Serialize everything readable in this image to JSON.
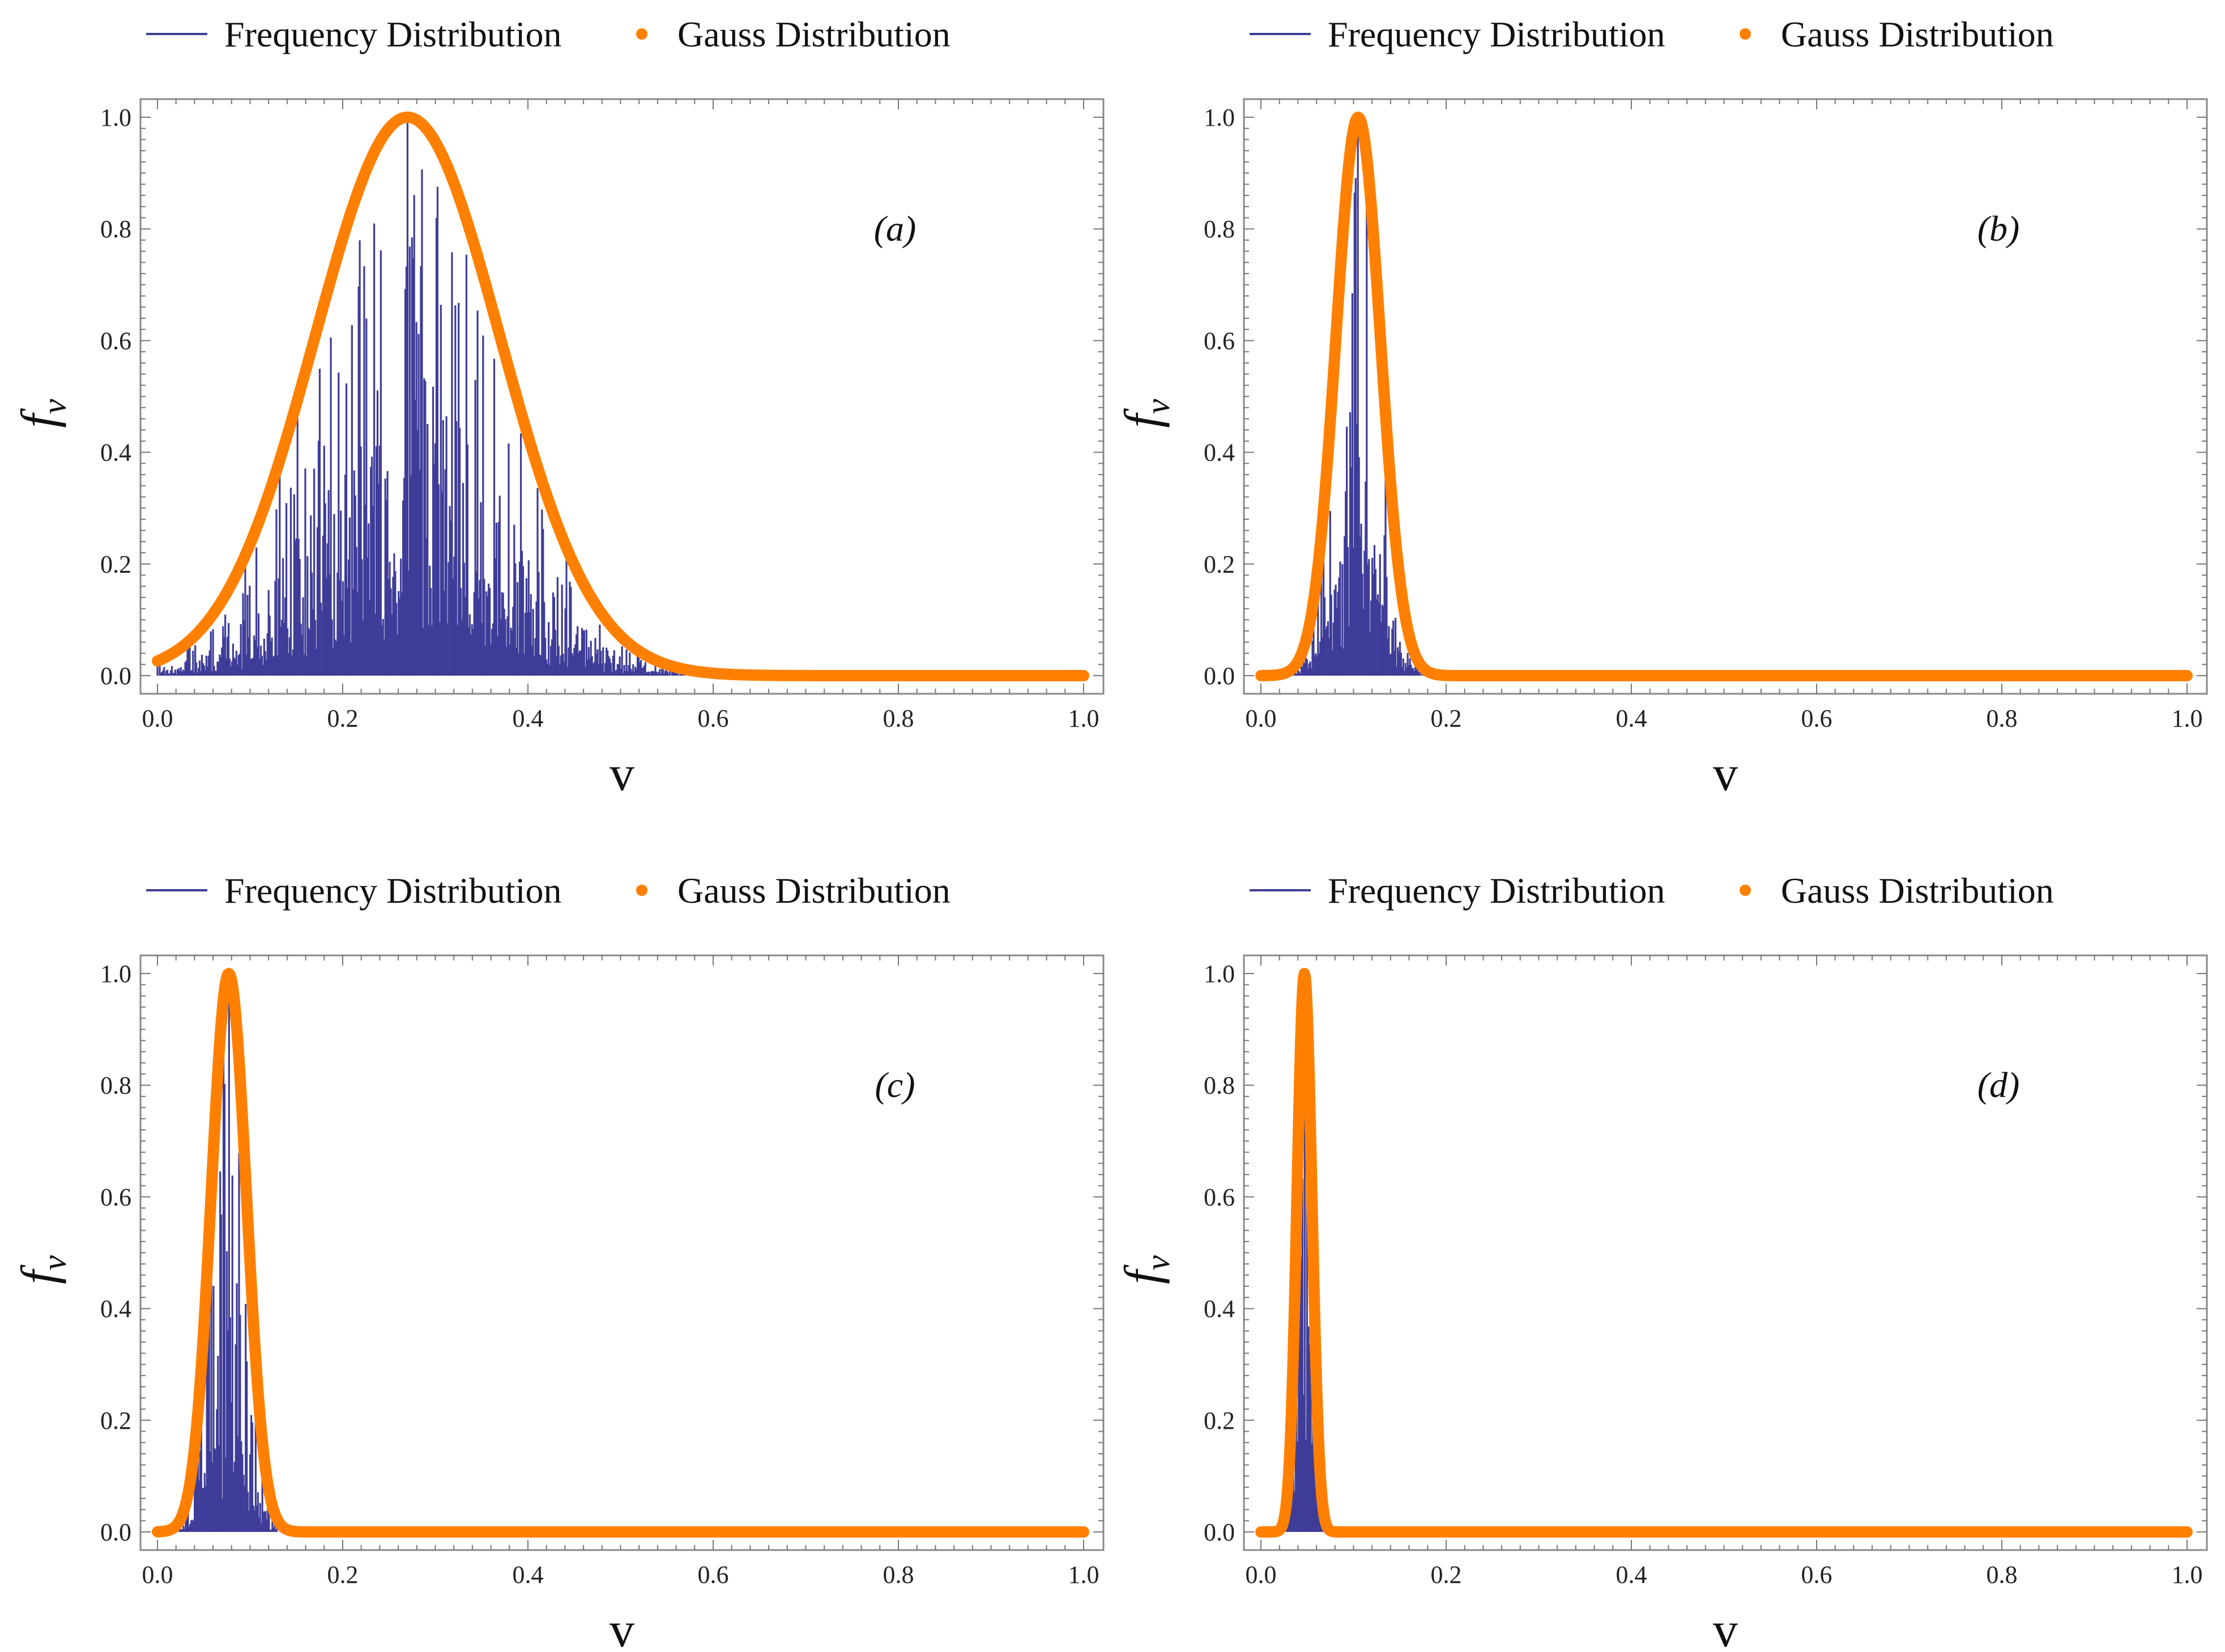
{
  "colors": {
    "frequency": "#3f3d99",
    "gauss": "#ff8000",
    "frame": "#888888",
    "text": "#111111"
  },
  "chart_data": [
    {
      "type": "bar",
      "panel_label": "(a)",
      "xlabel": "v",
      "ylabel": "f",
      "ylabel_sub": "v",
      "xlim": [
        0.0,
        1.0
      ],
      "ylim": [
        0.0,
        1.0
      ],
      "xticks": [
        "0.0",
        "0.2",
        "0.4",
        "0.6",
        "0.8",
        "1.0"
      ],
      "yticks": [
        "0.0",
        "0.2",
        "0.4",
        "0.6",
        "0.8",
        "1.0"
      ],
      "legend": [
        "Frequency Distribution",
        "Gauss Distribution"
      ],
      "series": [
        {
          "name": "Frequency Distribution",
          "kind": "histogram",
          "mean": 0.27,
          "sigma": 0.1,
          "peak": 0.99,
          "x_max": 0.6
        },
        {
          "name": "Gauss Distribution",
          "kind": "gaussian",
          "mean": 0.27,
          "sigma": 0.1,
          "amplitude": 1.0
        }
      ]
    },
    {
      "type": "bar",
      "panel_label": "(b)",
      "xlabel": "v",
      "ylabel": "f",
      "ylabel_sub": "v",
      "xlim": [
        0.0,
        1.0
      ],
      "ylim": [
        0.0,
        1.0
      ],
      "xticks": [
        "0.0",
        "0.2",
        "0.4",
        "0.6",
        "0.8",
        "1.0"
      ],
      "yticks": [
        "0.0",
        "0.2",
        "0.4",
        "0.6",
        "0.8",
        "1.0"
      ],
      "legend": [
        "Frequency Distribution",
        "Gauss Distribution"
      ],
      "series": [
        {
          "name": "Frequency Distribution",
          "kind": "histogram",
          "mean": 0.105,
          "sigma": 0.024,
          "peak": 0.98,
          "x_max": 0.18
        },
        {
          "name": "Gauss Distribution",
          "kind": "gaussian",
          "mean": 0.105,
          "sigma": 0.024,
          "amplitude": 1.0
        }
      ]
    },
    {
      "type": "bar",
      "panel_label": "(c)",
      "xlabel": "v",
      "ylabel": "f",
      "ylabel_sub": "v",
      "xlim": [
        0.0,
        1.0
      ],
      "ylim": [
        0.0,
        1.0
      ],
      "xticks": [
        "0.0",
        "0.2",
        "0.4",
        "0.6",
        "0.8",
        "1.0"
      ],
      "yticks": [
        "0.0",
        "0.2",
        "0.4",
        "0.6",
        "0.8",
        "1.0"
      ],
      "legend": [
        "Frequency Distribution",
        "Gauss Distribution"
      ],
      "series": [
        {
          "name": "Frequency Distribution",
          "kind": "histogram",
          "mean": 0.077,
          "sigma": 0.019,
          "peak": 0.95,
          "x_max": 0.13
        },
        {
          "name": "Gauss Distribution",
          "kind": "gaussian",
          "mean": 0.077,
          "sigma": 0.019,
          "amplitude": 1.0
        }
      ]
    },
    {
      "type": "bar",
      "panel_label": "(d)",
      "xlabel": "v",
      "ylabel": "f",
      "ylabel_sub": "v",
      "xlim": [
        0.0,
        1.0
      ],
      "ylim": [
        0.0,
        1.0
      ],
      "xticks": [
        "0.0",
        "0.2",
        "0.4",
        "0.6",
        "0.8",
        "1.0"
      ],
      "yticks": [
        "0.0",
        "0.2",
        "0.4",
        "0.6",
        "0.8",
        "1.0"
      ],
      "legend": [
        "Frequency Distribution",
        "Gauss Distribution"
      ],
      "series": [
        {
          "name": "Frequency Distribution",
          "kind": "histogram",
          "mean": 0.047,
          "sigma": 0.008,
          "peak": 0.82,
          "x_max": 0.07
        },
        {
          "name": "Gauss Distribution",
          "kind": "gaussian",
          "mean": 0.047,
          "sigma": 0.008,
          "amplitude": 1.0
        }
      ]
    }
  ]
}
